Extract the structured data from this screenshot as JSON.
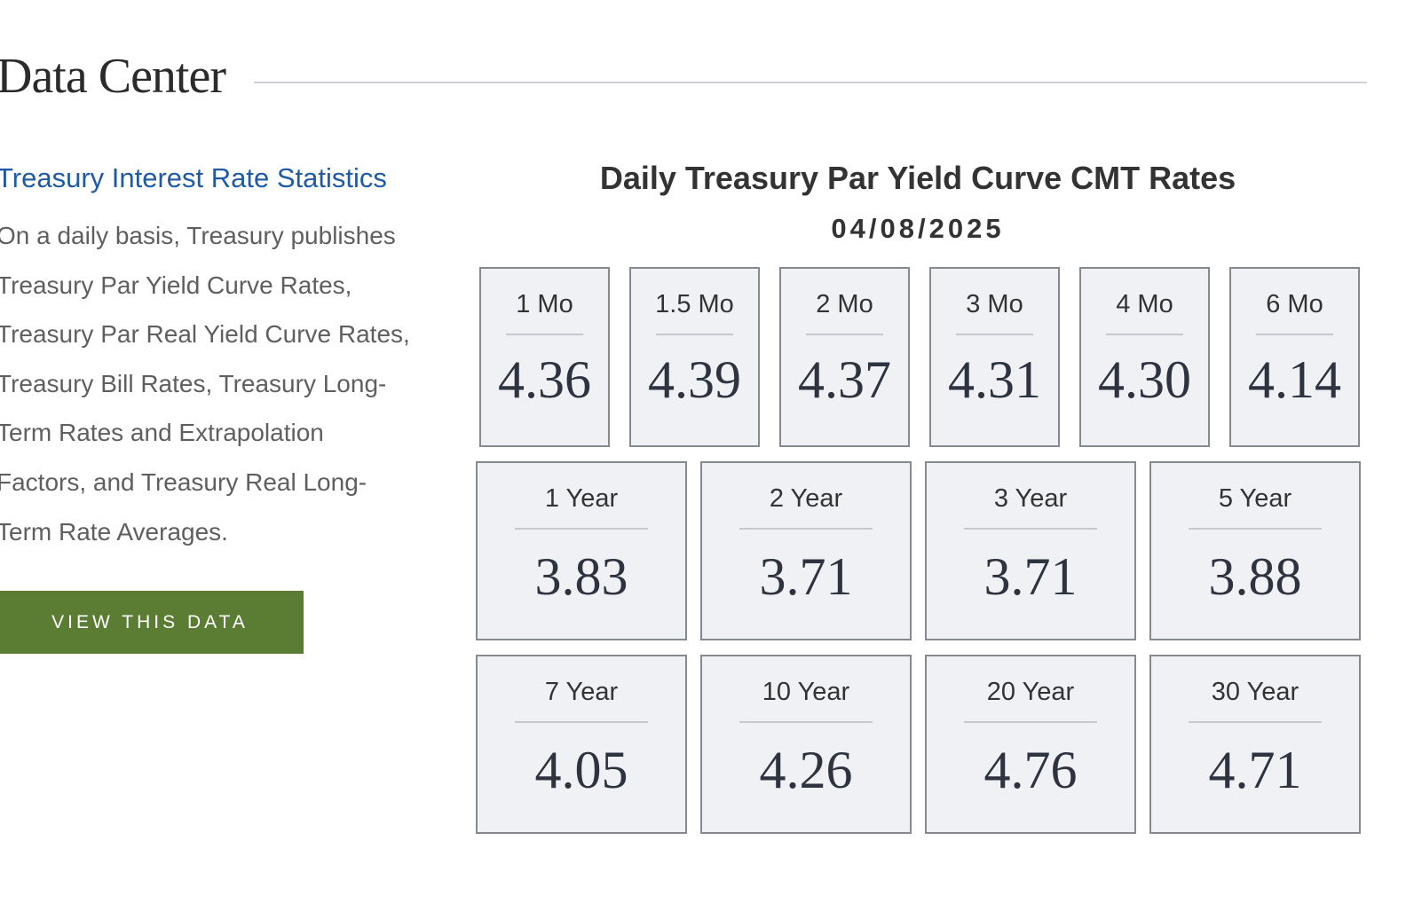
{
  "header": {
    "title": "Data Center"
  },
  "section": {
    "link_label": "Treasury Interest Rate Statistics",
    "description": "On a daily basis, Treasury publishes\nTreasury Par Yield Curve Rates,\nTreasury Par Real Yield Curve Rates,\nTreasury Bill Rates, Treasury Long-\nTerm Rates and Extrapolation\nFactors, and Treasury Real Long-\nTerm Rate Averages.",
    "button_label": "VIEW THIS DATA"
  },
  "rates": {
    "title": "Daily Treasury Par Yield Curve CMT Rates",
    "date": "04/08/2025",
    "tiles": [
      {
        "label": "1 Mo",
        "value": "4.36"
      },
      {
        "label": "1.5 Mo",
        "value": "4.39"
      },
      {
        "label": "2 Mo",
        "value": "4.37"
      },
      {
        "label": "3 Mo",
        "value": "4.31"
      },
      {
        "label": "4 Mo",
        "value": "4.30"
      },
      {
        "label": "6 Mo",
        "value": "4.14"
      },
      {
        "label": "1 Year",
        "value": "3.83"
      },
      {
        "label": "2 Year",
        "value": "3.71"
      },
      {
        "label": "3 Year",
        "value": "3.71"
      },
      {
        "label": "5 Year",
        "value": "3.88"
      },
      {
        "label": "7 Year",
        "value": "4.05"
      },
      {
        "label": "10 Year",
        "value": "4.26"
      },
      {
        "label": "20 Year",
        "value": "4.76"
      },
      {
        "label": "30 Year",
        "value": "4.71"
      }
    ]
  },
  "colors": {
    "link": "#1f5aa6",
    "button_bg": "#5a7d33",
    "tile_bg": "#f0f1f5",
    "tile_border": "#858a91"
  }
}
